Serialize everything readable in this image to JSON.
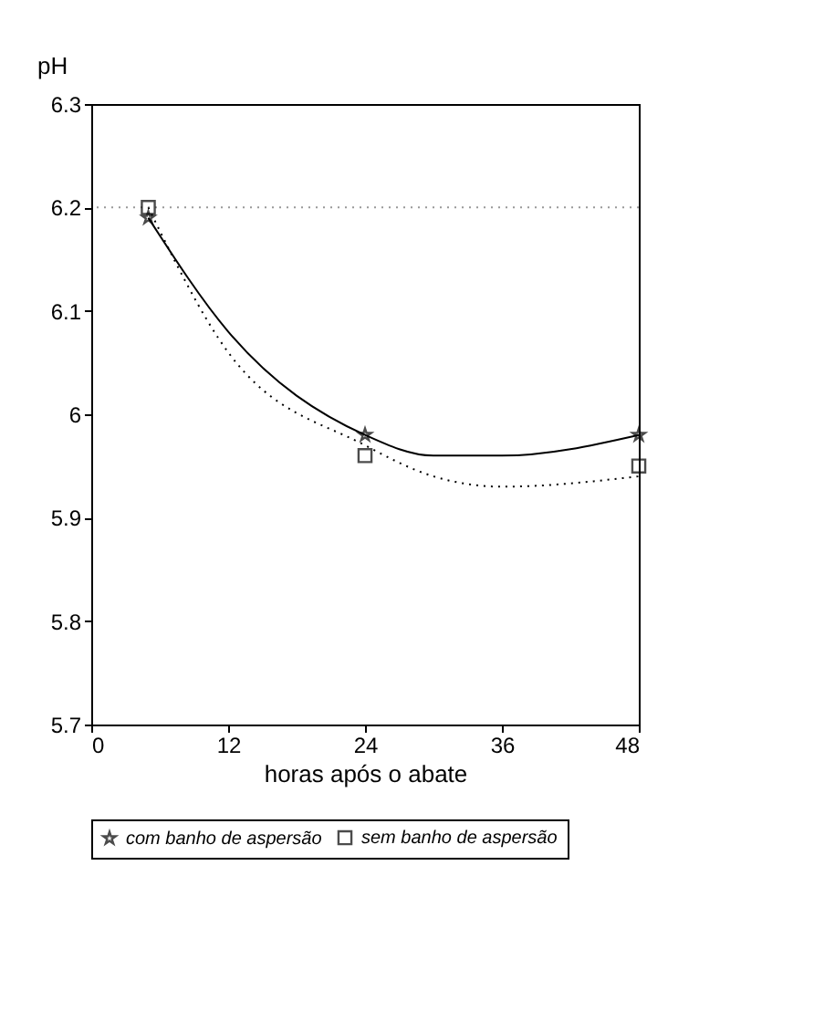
{
  "chart_data": {
    "type": "scatter",
    "ylabel": "pH",
    "xlabel": "horas após o abate",
    "x": [
      5,
      24,
      48
    ],
    "series": [
      {
        "name": "com banho de aspersão",
        "color": "#000000",
        "values": [
          6.19,
          5.98,
          5.98
        ],
        "marker": "star"
      },
      {
        "name": "sem banho de aspersão",
        "color": "#000000",
        "values": [
          6.2,
          5.96,
          5.95
        ],
        "marker": "square"
      },
      {
        "type": "line",
        "color": "#000000",
        "x": [
          5,
          12,
          24,
          30,
          36,
          48
        ],
        "values": [
          6.19,
          6.08,
          5.98,
          5.96,
          5.96,
          5.98
        ],
        "marker": "none",
        "line_style": "solid"
      },
      {
        "type": "line",
        "color": "#000000",
        "x": [
          5,
          12,
          24,
          30,
          36,
          48
        ],
        "values": [
          6.2,
          6.06,
          5.97,
          5.94,
          5.93,
          5.94
        ],
        "marker": "none",
        "line_style": "dotted"
      }
    ],
    "xlim": [
      0,
      48
    ],
    "xticks": [
      0,
      12,
      24,
      36,
      48
    ],
    "ylim": [
      5.7,
      6.3
    ],
    "yticks": [
      5.7,
      5.8,
      5.9,
      6.0,
      6.1,
      6.2,
      6.3
    ],
    "ref_lines": [
      {
        "axis": "y",
        "value": 6.2,
        "color": "#999999",
        "line_style": "dotted"
      }
    ],
    "grid": false,
    "legend": "bottom"
  }
}
